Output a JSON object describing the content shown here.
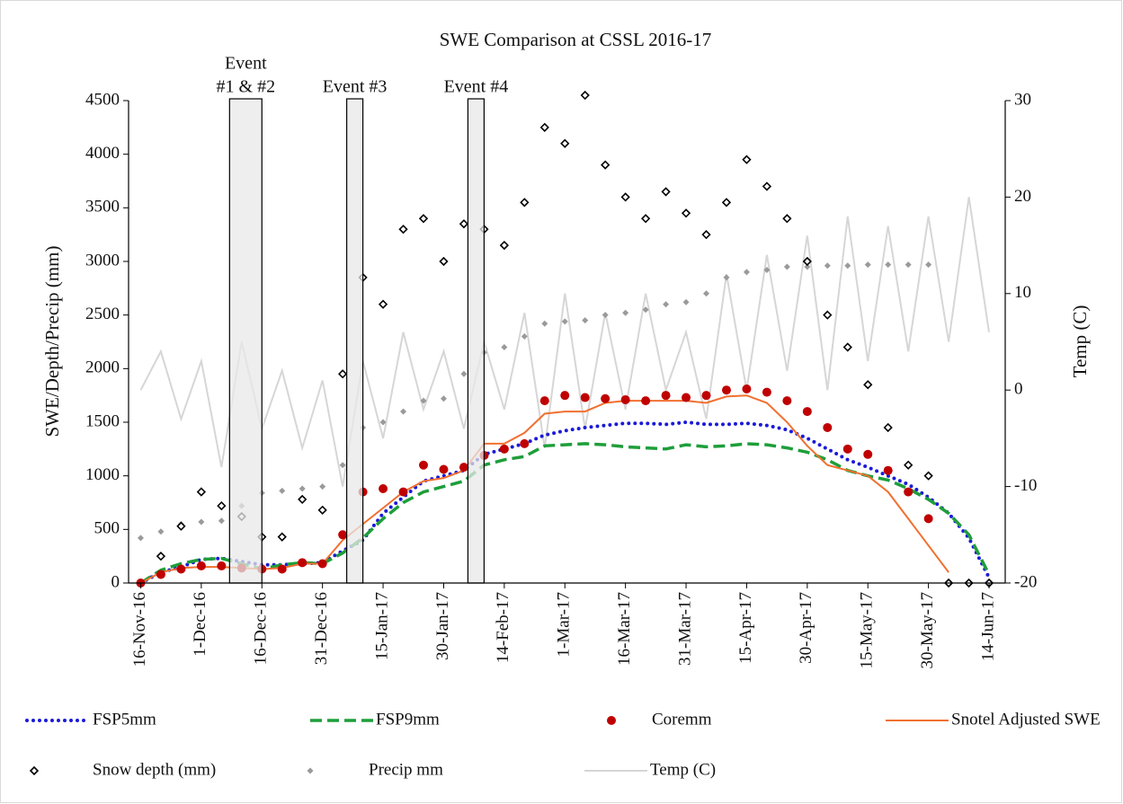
{
  "chart_data": {
    "type": "line",
    "title": "SWE Comparison at CSSL 2016-17",
    "y_label": "SWE/Depth/Precip (mm)",
    "y2_label": "Temp (C)",
    "xlim": [
      "2016-11-13",
      "2017-06-18"
    ],
    "xticks": [
      {
        "value": "2016-11-16",
        "label": "16-Nov-16"
      },
      {
        "value": "2016-12-01",
        "label": "1-Dec-16"
      },
      {
        "value": "2016-12-16",
        "label": "16-Dec-16"
      },
      {
        "value": "2016-12-31",
        "label": "31-Dec-16"
      },
      {
        "value": "2017-01-15",
        "label": "15-Jan-17"
      },
      {
        "value": "2017-01-30",
        "label": "30-Jan-17"
      },
      {
        "value": "2017-02-14",
        "label": "14-Feb-17"
      },
      {
        "value": "2017-03-01",
        "label": "1-Mar-17"
      },
      {
        "value": "2017-03-16",
        "label": "16-Mar-17"
      },
      {
        "value": "2017-03-31",
        "label": "31-Mar-17"
      },
      {
        "value": "2017-04-15",
        "label": "15-Apr-17"
      },
      {
        "value": "2017-04-30",
        "label": "30-Apr-17"
      },
      {
        "value": "2017-05-15",
        "label": "15-May-17"
      },
      {
        "value": "2017-05-30",
        "label": "30-May-17"
      },
      {
        "value": "2017-06-14",
        "label": "14-Jun-17"
      }
    ],
    "ylim": [
      0,
      4500
    ],
    "yticks": [
      0,
      500,
      1000,
      1500,
      2000,
      2500,
      3000,
      3500,
      4000,
      4500
    ],
    "y2lim": [
      -20,
      30
    ],
    "y2ticks": [
      -20,
      -10,
      0,
      10,
      20,
      30
    ],
    "events": [
      {
        "label": [
          "Event",
          "#1 & #2"
        ],
        "start": "2016-12-08",
        "end": "2016-12-16"
      },
      {
        "label": [
          "Event #3"
        ],
        "start": "2017-01-06",
        "end": "2017-01-10"
      },
      {
        "label": [
          "Event #4"
        ],
        "start": "2017-02-05",
        "end": "2017-02-09"
      }
    ],
    "x": [
      "2016-11-16",
      "2016-11-21",
      "2016-11-26",
      "2016-12-01",
      "2016-12-06",
      "2016-12-11",
      "2016-12-16",
      "2016-12-21",
      "2016-12-26",
      "2016-12-31",
      "2017-01-05",
      "2017-01-10",
      "2017-01-15",
      "2017-01-20",
      "2017-01-25",
      "2017-01-30",
      "2017-02-04",
      "2017-02-09",
      "2017-02-14",
      "2017-02-19",
      "2017-02-24",
      "2017-03-01",
      "2017-03-06",
      "2017-03-11",
      "2017-03-16",
      "2017-03-21",
      "2017-03-26",
      "2017-03-31",
      "2017-04-05",
      "2017-04-10",
      "2017-04-15",
      "2017-04-20",
      "2017-04-25",
      "2017-04-30",
      "2017-05-05",
      "2017-05-10",
      "2017-05-15",
      "2017-05-20",
      "2017-05-25",
      "2017-05-30",
      "2017-06-04",
      "2017-06-09",
      "2017-06-14"
    ],
    "series": [
      {
        "name": "Temp (C)",
        "color": "#d6d6d6",
        "style": "line",
        "axis": "y2",
        "values": [
          0,
          4,
          -3,
          3,
          -8,
          5,
          -4,
          2,
          -6,
          1,
          -10,
          3,
          -5,
          6,
          -2,
          4,
          -4,
          5,
          -2,
          8,
          -6,
          10,
          -4,
          8,
          -2,
          10,
          0,
          6,
          -3,
          12,
          0,
          14,
          2,
          16,
          0,
          18,
          3,
          17,
          4,
          18,
          5,
          20,
          6
        ]
      },
      {
        "name": "Precip mm",
        "color": "#9a9a9a",
        "style": "markers",
        "marker": "diamond-filled",
        "values": [
          420,
          480,
          550,
          570,
          580,
          720,
          840,
          860,
          880,
          900,
          1100,
          1450,
          1500,
          1600,
          1700,
          1720,
          1950,
          2150,
          2200,
          2300,
          2420,
          2440,
          2450,
          2500,
          2520,
          2550,
          2600,
          2620,
          2700,
          2850,
          2900,
          2920,
          2950,
          2950,
          2960,
          2960,
          2970,
          2970,
          2970,
          2970,
          null,
          null,
          null
        ]
      },
      {
        "name": "Snow depth (mm)",
        "color": "#000000",
        "style": "markers",
        "marker": "diamond",
        "values": [
          0,
          250,
          530,
          850,
          720,
          620,
          430,
          430,
          780,
          680,
          1950,
          2850,
          2600,
          3300,
          3400,
          3000,
          3350,
          3300,
          3150,
          3550,
          4250,
          4100,
          4550,
          3900,
          3600,
          3400,
          3650,
          3450,
          3250,
          3550,
          3950,
          3700,
          3400,
          3000,
          2500,
          2200,
          1850,
          1450,
          1100,
          1000,
          0,
          0,
          0
        ]
      },
      {
        "name": "FSP5mm",
        "color": "#1a1ad8",
        "style": "dotted",
        "values": [
          0,
          100,
          150,
          220,
          230,
          200,
          170,
          170,
          180,
          190,
          300,
          400,
          650,
          800,
          950,
          1000,
          1050,
          1200,
          1250,
          1300,
          1380,
          1420,
          1450,
          1470,
          1490,
          1490,
          1480,
          1500,
          1480,
          1480,
          1490,
          1470,
          1430,
          1350,
          1250,
          1150,
          1080,
          1000,
          920,
          800,
          650,
          420,
          50
        ]
      },
      {
        "name": "FSP9mm",
        "color": "#1e9e3a",
        "style": "dashed",
        "values": [
          0,
          120,
          180,
          220,
          230,
          180,
          130,
          170,
          190,
          180,
          280,
          420,
          600,
          750,
          850,
          900,
          950,
          1100,
          1150,
          1180,
          1280,
          1290,
          1300,
          1290,
          1270,
          1260,
          1250,
          1290,
          1270,
          1280,
          1300,
          1290,
          1260,
          1220,
          1150,
          1050,
          1000,
          960,
          880,
          780,
          650,
          450,
          80
        ]
      },
      {
        "name": "Snotel Adjusted SWE",
        "color": "#f07030",
        "style": "line",
        "values": [
          0,
          100,
          140,
          150,
          150,
          140,
          130,
          140,
          180,
          180,
          400,
          550,
          700,
          850,
          950,
          980,
          1050,
          1300,
          1300,
          1400,
          1580,
          1600,
          1600,
          1680,
          1700,
          1700,
          1700,
          1700,
          1680,
          1740,
          1750,
          1680,
          1500,
          1280,
          1100,
          1050,
          1000,
          850,
          600,
          350,
          100,
          null,
          null
        ]
      },
      {
        "name": "Coremm",
        "color": "#c00000",
        "style": "markers",
        "marker": "circle",
        "values": [
          0,
          80,
          130,
          160,
          160,
          140,
          130,
          130,
          190,
          180,
          450,
          850,
          880,
          850,
          1100,
          1060,
          1080,
          1190,
          1250,
          1300,
          1700,
          1750,
          1730,
          1720,
          1710,
          1700,
          1750,
          1730,
          1750,
          1800,
          1810,
          1780,
          1700,
          1600,
          1450,
          1250,
          1200,
          1050,
          850,
          600,
          null,
          null,
          null
        ]
      }
    ]
  }
}
